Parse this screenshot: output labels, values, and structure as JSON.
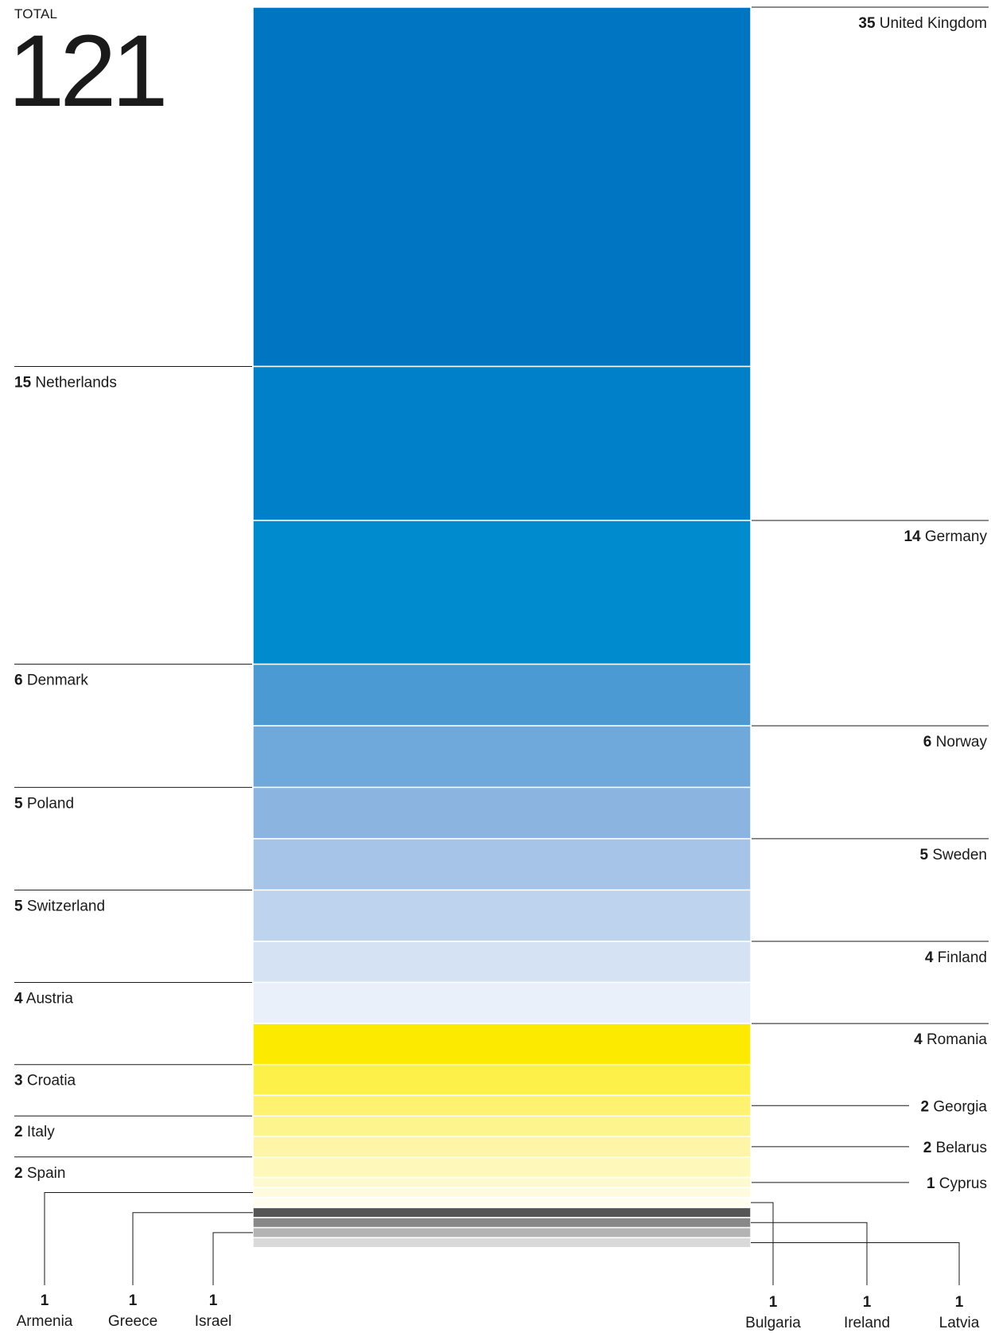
{
  "total": {
    "label": "TOTAL",
    "value": "121"
  },
  "chart_data": {
    "type": "bar",
    "title": "",
    "stacked": true,
    "total": 121,
    "segments": [
      {
        "name": "United Kingdom",
        "value": 35,
        "color": "#0075C1",
        "side": "right"
      },
      {
        "name": "Netherlands",
        "value": 15,
        "color": "#0080C8",
        "side": "left"
      },
      {
        "name": "Germany",
        "value": 14,
        "color": "#008BCE",
        "side": "right"
      },
      {
        "name": "Denmark",
        "value": 6,
        "color": "#4B9AD4",
        "side": "left"
      },
      {
        "name": "Norway",
        "value": 6,
        "color": "#6FA8DA",
        "side": "right"
      },
      {
        "name": "Poland",
        "value": 5,
        "color": "#8BB5E0",
        "side": "left"
      },
      {
        "name": "Sweden",
        "value": 5,
        "color": "#A5C4E7",
        "side": "right"
      },
      {
        "name": "Switzerland",
        "value": 5,
        "color": "#BDD3EE",
        "side": "left"
      },
      {
        "name": "Finland",
        "value": 4,
        "color": "#D4E2F4",
        "side": "right"
      },
      {
        "name": "Austria",
        "value": 4,
        "color": "#E9F0FA",
        "side": "left"
      },
      {
        "name": "Romania",
        "value": 4,
        "color": "#FCEA00",
        "side": "right"
      },
      {
        "name": "Croatia",
        "value": 3,
        "color": "#FDF049",
        "side": "left"
      },
      {
        "name": "Georgia",
        "value": 2,
        "color": "#FEF270",
        "side": "right"
      },
      {
        "name": "Italy",
        "value": 2,
        "color": "#FEF48D",
        "side": "left"
      },
      {
        "name": "Belarus",
        "value": 2,
        "color": "#FEF6A6",
        "side": "right"
      },
      {
        "name": "Spain",
        "value": 2,
        "color": "#FEF8BB",
        "side": "left"
      },
      {
        "name": "Cyprus",
        "value": 1,
        "color": "#FEFACF",
        "side": "right"
      },
      {
        "name": "Armenia",
        "value": 1,
        "color": "#FFFBDF",
        "side": "bottom-left"
      },
      {
        "name": "Bulgaria",
        "value": 1,
        "color": "#FFFDEE",
        "side": "bottom-right"
      },
      {
        "name": "Greece",
        "value": 1,
        "color": "#555555",
        "side": "bottom-left"
      },
      {
        "name": "Ireland",
        "value": 1,
        "color": "#888888",
        "side": "bottom-right"
      },
      {
        "name": "Israel",
        "value": 1,
        "color": "#B3B3B3",
        "side": "bottom-left"
      },
      {
        "name": "Latvia",
        "value": 1,
        "color": "#D9D9D9",
        "side": "bottom-right"
      }
    ]
  }
}
